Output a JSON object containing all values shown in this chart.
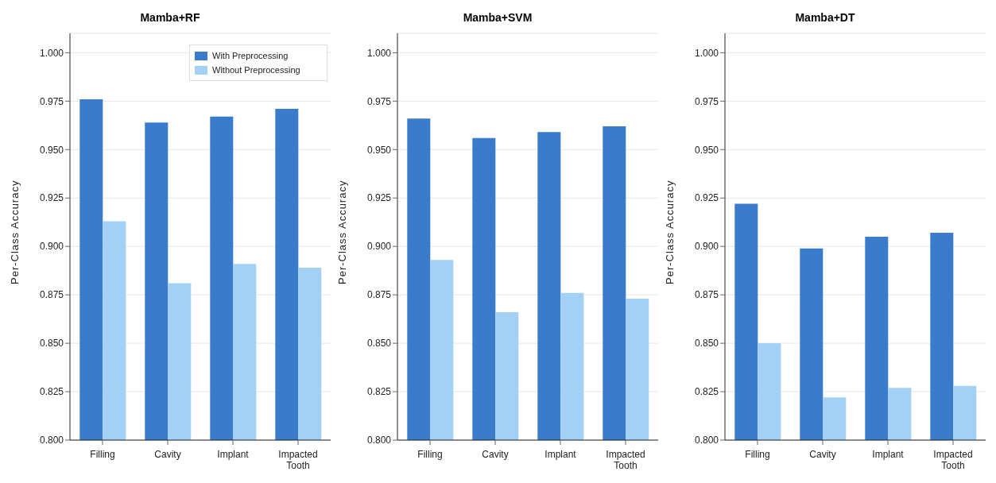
{
  "chart_data": [
    {
      "type": "bar",
      "title": "Mamba+RF",
      "ylabel": "Per-Class Accuracy",
      "categories": [
        "Filling",
        "Cavity",
        "Implant",
        "Impacted Tooth"
      ],
      "series": [
        {
          "name": "With Preprocessing",
          "color": "#3a7bcc",
          "values": [
            0.976,
            0.964,
            0.967,
            0.971
          ]
        },
        {
          "name": "Without Preprocessing",
          "color": "#a3d0f5",
          "values": [
            0.913,
            0.881,
            0.891,
            0.889
          ]
        }
      ],
      "ylim": [
        0.8,
        1.01
      ],
      "yticks": [
        {
          "value": 0.8,
          "label": "0.800"
        },
        {
          "value": 0.825,
          "label": "0.825"
        },
        {
          "value": 0.85,
          "label": "0.850"
        },
        {
          "value": 0.875,
          "label": "0.875"
        },
        {
          "value": 0.9,
          "label": "0.900"
        },
        {
          "value": 0.925,
          "label": "0.925"
        },
        {
          "value": 0.95,
          "label": "0.950"
        },
        {
          "value": 0.975,
          "label": "0.975"
        },
        {
          "value": 1.0,
          "label": "1.000"
        }
      ],
      "grid": "y",
      "legend": "top right"
    },
    {
      "type": "bar",
      "title": "Mamba+SVM",
      "ylabel": "Per-Class Accuracy",
      "categories": [
        "Filling",
        "Cavity",
        "Implant",
        "Impacted Tooth"
      ],
      "series": [
        {
          "color": "#3a7bcc",
          "values": [
            0.966,
            0.956,
            0.959,
            0.962
          ]
        },
        {
          "color": "#a3d0f5",
          "values": [
            0.893,
            0.866,
            0.876,
            0.873
          ]
        }
      ],
      "ylim": [
        0.8,
        1.01
      ],
      "yticks": [
        {
          "value": 0.8,
          "label": "0.800"
        },
        {
          "value": 0.825,
          "label": "0.825"
        },
        {
          "value": 0.85,
          "label": "0.850"
        },
        {
          "value": 0.875,
          "label": "0.875"
        },
        {
          "value": 0.9,
          "label": "0.900"
        },
        {
          "value": 0.925,
          "label": "0.925"
        },
        {
          "value": 0.95,
          "label": "0.950"
        },
        {
          "value": 0.975,
          "label": "0.975"
        },
        {
          "value": 1.0,
          "label": "1.000"
        }
      ],
      "grid": "y"
    },
    {
      "type": "bar",
      "title": "Mamba+DT",
      "ylabel": "Per-Class Accuracy",
      "categories": [
        "Filling",
        "Cavity",
        "Implant",
        "Impacted Tooth"
      ],
      "series": [
        {
          "color": "#3a7bcc",
          "values": [
            0.922,
            0.899,
            0.905,
            0.907
          ]
        },
        {
          "color": "#a3d0f5",
          "values": [
            0.85,
            0.822,
            0.827,
            0.828
          ]
        }
      ],
      "ylim": [
        0.8,
        1.01
      ],
      "yticks": [
        {
          "value": 0.8,
          "label": "0.800"
        },
        {
          "value": 0.825,
          "label": "0.825"
        },
        {
          "value": 0.85,
          "label": "0.850"
        },
        {
          "value": 0.875,
          "label": "0.875"
        },
        {
          "value": 0.9,
          "label": "0.900"
        },
        {
          "value": 0.925,
          "label": "0.925"
        },
        {
          "value": 0.95,
          "label": "0.950"
        },
        {
          "value": 0.975,
          "label": "0.975"
        },
        {
          "value": 1.0,
          "label": "1.000"
        }
      ],
      "grid": "y"
    }
  ]
}
